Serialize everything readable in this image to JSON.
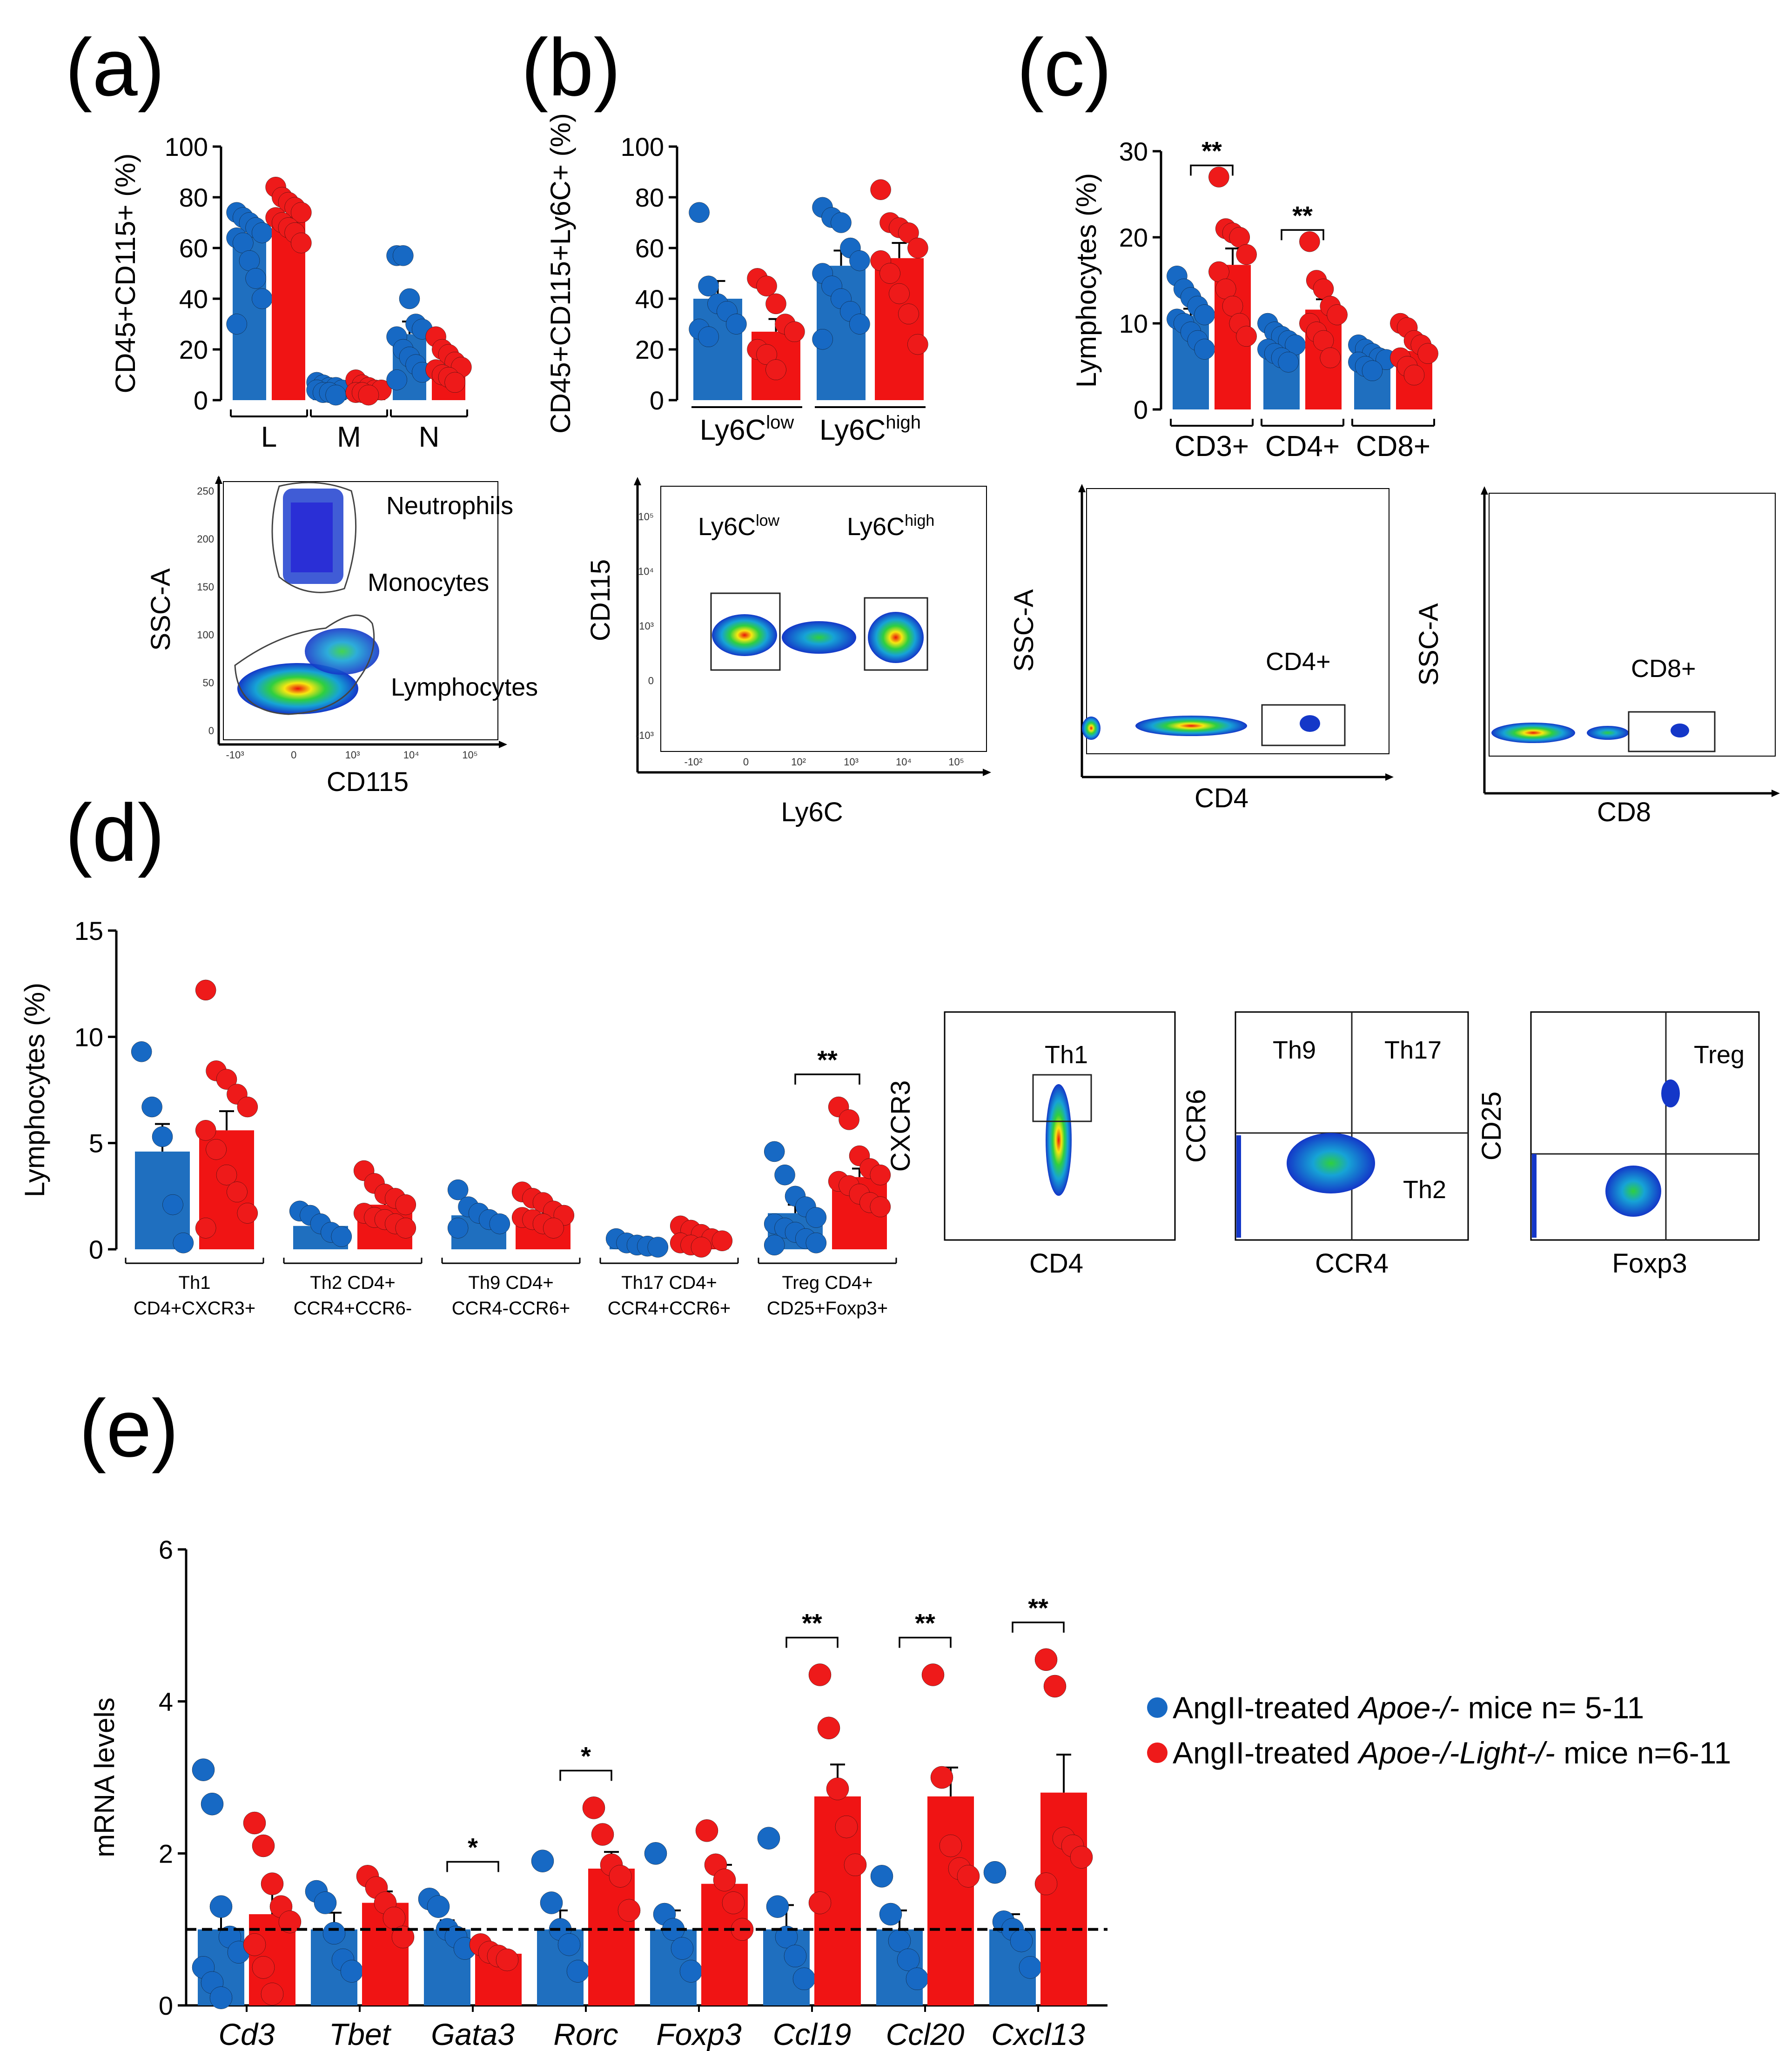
{
  "colors": {
    "blue": "#1f6fbf",
    "blue_dot": "#1769c4",
    "red": "#f01414",
    "red_dot": "#ee1a1a"
  },
  "panels": {
    "a": "(a)",
    "b": "(b)",
    "c": "(c)",
    "d": "(d)",
    "e": "(e)"
  },
  "legend": {
    "items": [
      {
        "prefix": "AngII-treated ",
        "genotype": "Apoe-/-",
        "suffix": " mice n= 5-11",
        "color": "#1769c4"
      },
      {
        "prefix": "AngII-treated ",
        "genotype": "Apoe-/-Light-/-",
        "suffix": " mice n=6-11",
        "color": "#ee1a1a"
      }
    ]
  },
  "chart_data": [
    {
      "id": "a",
      "type": "bar",
      "ylabel": "CD45+CD115+ (%)",
      "ylim": [
        0,
        100
      ],
      "yticks": [
        0,
        20,
        40,
        60,
        80,
        100
      ],
      "categories": [
        "L",
        "M",
        "N"
      ],
      "series": [
        {
          "name": "AngII-treated Apoe-/- mice",
          "values": [
            66,
            4,
            26
          ],
          "errors": [
            5,
            1,
            5
          ],
          "points": [
            [
              74,
              72,
              70,
              68,
              66,
              64,
              62,
              55,
              48,
              40,
              30
            ],
            [
              7,
              6,
              5,
              5,
              4,
              4,
              3,
              3,
              2
            ],
            [
              57,
              57,
              40,
              30,
              28,
              25,
              20,
              17,
              14,
              11,
              8
            ]
          ]
        },
        {
          "name": "AngII-treated Apoe-/-Light-/- mice",
          "values": [
            73,
            5,
            14
          ],
          "errors": [
            3,
            1,
            2
          ],
          "points": [
            [
              84,
              80,
              78,
              76,
              74,
              72,
              70,
              68,
              66,
              62
            ],
            [
              8,
              6,
              5,
              4,
              4,
              3,
              3,
              2
            ],
            [
              25,
              20,
              18,
              15,
              13,
              12,
              10,
              9,
              7
            ]
          ]
        }
      ]
    },
    {
      "id": "b",
      "type": "bar",
      "ylabel": "CD45+CD115+Ly6C+ (%)",
      "ylim": [
        0,
        100
      ],
      "yticks": [
        0,
        20,
        40,
        60,
        80,
        100
      ],
      "categories": [
        "Ly6Clow",
        "Ly6Chigh"
      ],
      "category_main": [
        "Ly6C",
        "Ly6C"
      ],
      "category_sup": [
        "low",
        "high"
      ],
      "series": [
        {
          "name": "AngII-treated Apoe-/- mice",
          "values": [
            40,
            53
          ],
          "errors": [
            7,
            6
          ],
          "points": [
            [
              74,
              45,
              38,
              35,
              30,
              28,
              25
            ],
            [
              76,
              72,
              70,
              60,
              55,
              50,
              45,
              40,
              35,
              30,
              24
            ]
          ]
        },
        {
          "name": "AngII-treated Apoe-/-Light-/- mice",
          "values": [
            27,
            56
          ],
          "errors": [
            5,
            6
          ],
          "points": [
            [
              48,
              45,
              38,
              30,
              27,
              20,
              18,
              12
            ],
            [
              83,
              70,
              68,
              66,
              60,
              55,
              50,
              42,
              34,
              22
            ]
          ]
        }
      ]
    },
    {
      "id": "c",
      "type": "bar",
      "ylabel": "Lymphocytes (%)",
      "ylim": [
        0,
        30
      ],
      "yticks": [
        0,
        10,
        20,
        30
      ],
      "categories": [
        "CD3+",
        "CD4+",
        "CD8+"
      ],
      "significance": [
        {
          "category": "CD3+",
          "label": "**"
        },
        {
          "category": "CD4+",
          "label": "**"
        }
      ],
      "series": [
        {
          "name": "AngII-treated Apoe-/- mice",
          "values": [
            10.9,
            7.8,
            5.8
          ],
          "errors": [
            0.8,
            0.6,
            0.4
          ],
          "points": [
            [
              15.5,
              14,
              13,
              12,
              11,
              10.5,
              10,
              9,
              8,
              7
            ],
            [
              10,
              9,
              8.5,
              8,
              7.5,
              7,
              6.5,
              6,
              5.5
            ],
            [
              7.5,
              7,
              6.5,
              6,
              5.8,
              5.5,
              5,
              4.5
            ]
          ]
        },
        {
          "name": "AngII-treated Apoe-/-Light-/- mice",
          "values": [
            16.8,
            11.6,
            6.8
          ],
          "errors": [
            1.9,
            1.2,
            0.8
          ],
          "points": [
            [
              27,
              21,
              20.5,
              20,
              18,
              16,
              14,
              12,
              10,
              8.5
            ],
            [
              19.5,
              15,
              14,
              12,
              11,
              10,
              9,
              8,
              6
            ],
            [
              10,
              9.5,
              8,
              7.5,
              6.5,
              6,
              5,
              4
            ]
          ]
        }
      ]
    },
    {
      "id": "d",
      "type": "bar",
      "ylabel": "Lymphocytes (%)",
      "ylim": [
        0,
        15
      ],
      "yticks": [
        0,
        5,
        10,
        15
      ],
      "categories": [
        "Th1 CD4+CXCR3+",
        "Th2 CD4+ CCR4+CCR6-",
        "Th9 CD4+ CCR4-CCR6+",
        "Th17 CD4+ CCR4+CCR6+",
        "Treg CD4+ CD25+Foxp3+"
      ],
      "category_lines": [
        [
          "Th1",
          "CD4+CXCR3+"
        ],
        [
          "Th2 CD4+",
          "CCR4+CCR6-"
        ],
        [
          "Th9 CD4+",
          "CCR4-CCR6+"
        ],
        [
          "Th17 CD4+",
          "CCR4+CCR6+"
        ],
        [
          "Treg CD4+",
          "CD25+Foxp3+"
        ]
      ],
      "significance": [
        {
          "category": "Treg CD4+ CD25+Foxp3+",
          "label": "**"
        }
      ],
      "series": [
        {
          "name": "AngII-treated Apoe-/- mice",
          "values": [
            4.6,
            1.1,
            1.6,
            0.2,
            1.7
          ],
          "errors": [
            1.3,
            0.2,
            0.3,
            0.05,
            0.4
          ],
          "points": [
            [
              9.3,
              6.7,
              5.3,
              2.1,
              0.3
            ],
            [
              1.8,
              1.6,
              1.2,
              0.8,
              0.6
            ],
            [
              2.8,
              2.0,
              1.7,
              1.4,
              1.2,
              1.0
            ],
            [
              0.5,
              0.3,
              0.2,
              0.15,
              0.1
            ],
            [
              4.6,
              3.5,
              2.5,
              2.0,
              1.5,
              1.2,
              1.0,
              0.8,
              0.5,
              0.3,
              0.2
            ]
          ]
        },
        {
          "name": "AngII-treated Apoe-/-Light-/- mice",
          "values": [
            5.6,
            2.1,
            1.7,
            0.5,
            3.4
          ],
          "errors": [
            0.9,
            0.3,
            0.2,
            0.1,
            0.4
          ],
          "points": [
            [
              12.2,
              8.4,
              8.0,
              7.3,
              6.7,
              5.6,
              4.7,
              3.5,
              2.7,
              1.7,
              1.0
            ],
            [
              3.7,
              3.1,
              2.6,
              2.4,
              2.1,
              1.7,
              1.5,
              1.4,
              1.2,
              1.0
            ],
            [
              2.7,
              2.4,
              2.2,
              1.8,
              1.6,
              1.5,
              1.4,
              1.2,
              1.0
            ],
            [
              1.1,
              0.9,
              0.7,
              0.5,
              0.4,
              0.3,
              0.2,
              0.1
            ],
            [
              6.7,
              6.1,
              4.4,
              3.8,
              3.5,
              3.2,
              3.0,
              2.6,
              2.2,
              2.0
            ]
          ]
        }
      ]
    },
    {
      "id": "e",
      "type": "bar",
      "ylabel": "mRNA levels",
      "ylim": [
        0,
        6
      ],
      "yticks": [
        0,
        2,
        4,
        6
      ],
      "reference_line": 1,
      "categories": [
        "Cd3",
        "Tbet",
        "Gata3",
        "Rorc",
        "Foxp3",
        "Ccl19",
        "Ccl20",
        "Cxcl13"
      ],
      "significance": [
        {
          "category": "Gata3",
          "label": "*"
        },
        {
          "category": "Rorc",
          "label": "*"
        },
        {
          "category": "Ccl19",
          "label": "**"
        },
        {
          "category": "Ccl20",
          "label": "**"
        },
        {
          "category": "Cxcl13",
          "label": "**"
        }
      ],
      "series": [
        {
          "name": "AngII-treated Apoe-/- mice",
          "values": [
            1.0,
            1.0,
            1.0,
            1.0,
            1.0,
            1.0,
            1.0,
            1.0
          ],
          "errors": [
            0.32,
            0.22,
            0.12,
            0.25,
            0.25,
            0.32,
            0.25,
            0.2
          ],
          "points": [
            [
              3.1,
              2.65,
              1.3,
              0.9,
              0.7,
              0.5,
              0.3,
              0.1
            ],
            [
              1.5,
              1.35,
              0.95,
              0.6,
              0.45
            ],
            [
              1.4,
              1.3,
              1.0,
              0.9,
              0.75
            ],
            [
              1.9,
              1.35,
              1.0,
              0.8,
              0.45
            ],
            [
              2.0,
              1.2,
              1.0,
              0.75,
              0.45
            ],
            [
              2.2,
              1.3,
              0.9,
              0.65,
              0.35
            ],
            [
              1.7,
              1.2,
              0.85,
              0.6,
              0.35
            ],
            [
              1.75,
              1.1,
              1.0,
              0.85,
              0.5
            ]
          ]
        },
        {
          "name": "AngII-treated Apoe-/-Light-/- mice",
          "values": [
            1.2,
            1.35,
            0.68,
            1.8,
            1.6,
            2.75,
            2.75,
            2.8
          ],
          "errors": [
            0.3,
            0.15,
            0.06,
            0.22,
            0.25,
            0.42,
            0.38,
            0.5
          ],
          "points": [
            [
              2.4,
              2.1,
              1.6,
              1.3,
              1.1,
              0.8,
              0.5,
              0.15
            ],
            [
              1.7,
              1.55,
              1.35,
              1.15,
              0.9
            ],
            [
              0.8,
              0.7,
              0.65,
              0.6
            ],
            [
              2.6,
              2.25,
              1.85,
              1.7,
              1.25
            ],
            [
              2.3,
              1.85,
              1.65,
              1.35,
              1.0
            ],
            [
              4.35,
              3.65,
              2.85,
              2.35,
              1.85,
              1.35
            ],
            [
              4.35,
              3.0,
              2.1,
              1.8,
              1.7
            ],
            [
              4.55,
              4.2,
              2.2,
              2.1,
              1.95,
              1.6
            ]
          ]
        }
      ]
    }
  ],
  "flow": {
    "a": {
      "ylabel": "SSC-A",
      "xlabel": "CD115",
      "yticks": [
        "250",
        "200",
        "150",
        "100",
        "50",
        "0"
      ],
      "xticks": [
        "-10³",
        "0",
        "10³",
        "10⁴",
        "10⁵"
      ],
      "gates": [
        "Neutrophils",
        "Monocytes",
        "Lymphocytes"
      ]
    },
    "b": {
      "ylabel": "CD115",
      "xlabel": "Ly6C",
      "yticks": [
        "10⁵",
        "10⁴",
        "10³",
        "0",
        "-10³"
      ],
      "xticks": [
        "-10²",
        "0",
        "10²",
        "10³",
        "10⁴",
        "10⁵"
      ],
      "gate_main": [
        "Ly6C",
        "Ly6C"
      ],
      "gate_sup": [
        "low",
        "high"
      ]
    },
    "c1": {
      "ylabel": "SSC-A",
      "xlabel": "CD4",
      "gate": "CD4+"
    },
    "c2": {
      "ylabel": "SSC-A",
      "xlabel": "CD8",
      "gate": "CD8+"
    },
    "d1": {
      "ylabel": "CXCR3",
      "xlabel": "CD4",
      "gate": "Th1"
    },
    "d2": {
      "ylabel": "CCR6",
      "xlabel": "CCR4",
      "gates": [
        "Th9",
        "Th17",
        "Th2"
      ]
    },
    "d3": {
      "ylabel": "CD25",
      "xlabel": "Foxp3",
      "gate": "Treg"
    }
  }
}
